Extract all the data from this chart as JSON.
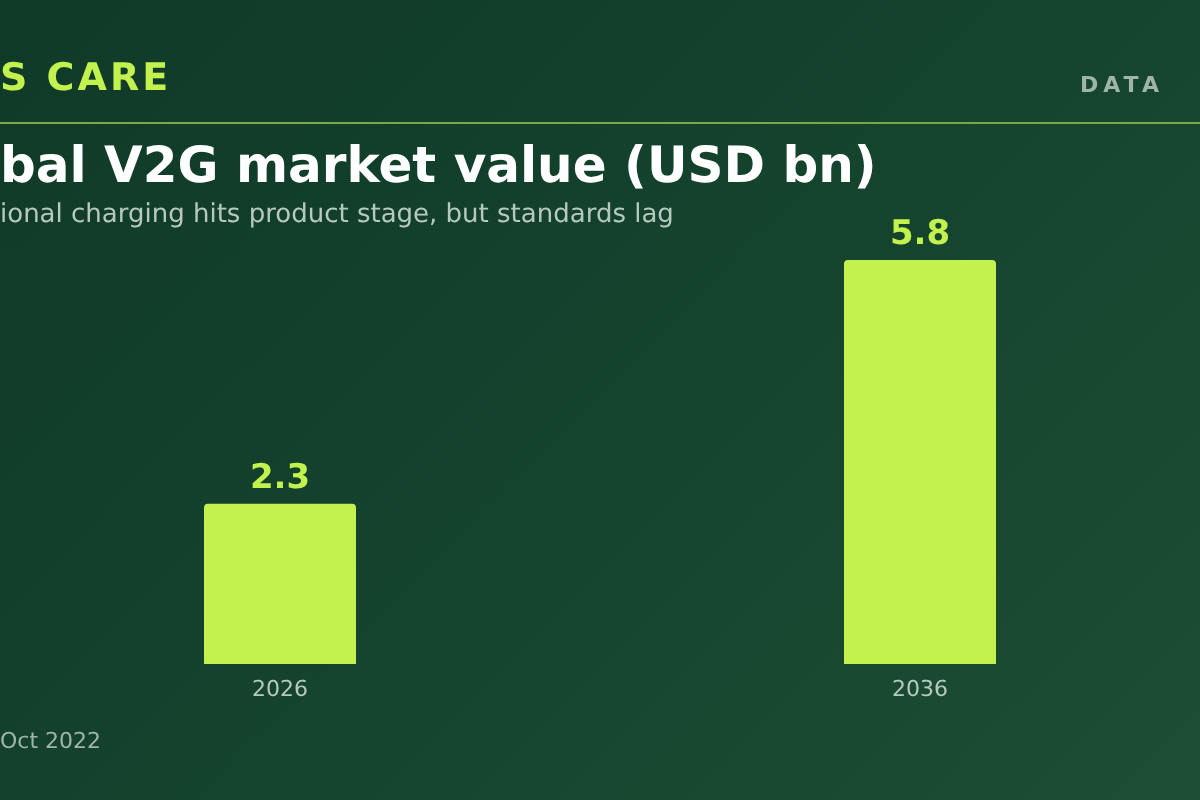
{
  "chart_data": {
    "type": "bar",
    "title": "bal V2G market value (USD bn)",
    "subtitle": "ional charging hits product stage, but standards lag",
    "annotations": [
      "S CARE",
      "DATA",
      "Oct 2022"
    ],
    "categories": [
      "2026",
      "2036"
    ],
    "values": [
      2.3,
      5.8
    ],
    "color": "#c3f24f",
    "data_labels": true,
    "grid": false,
    "legend": false
  }
}
